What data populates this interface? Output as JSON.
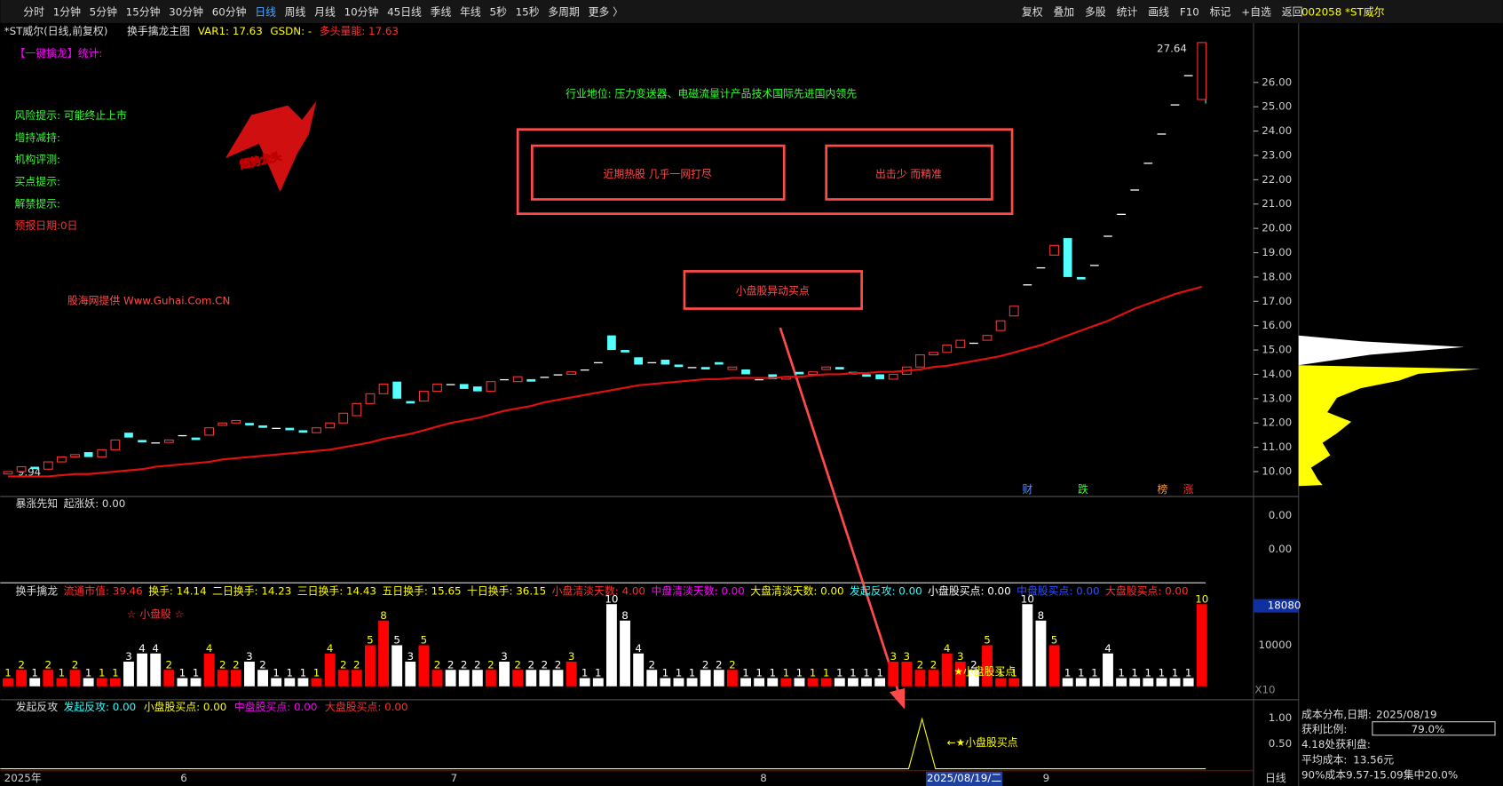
{
  "toolbar": {
    "periods": [
      "分时",
      "1分钟",
      "5分钟",
      "15分钟",
      "30分钟",
      "60分钟",
      "日线",
      "周线",
      "月线",
      "10分钟",
      "45日线",
      "季线",
      "年线",
      "5秒",
      "15秒",
      "多周期",
      "更多 〉"
    ],
    "active": 6,
    "tools": [
      "复权",
      "叠加",
      "多股",
      "统计",
      "画线",
      "F10",
      "标记",
      "+自选",
      "返回"
    ],
    "stock": "002058 *ST威尔"
  },
  "main": {
    "title": "*ST威尔(日线,前复权)",
    "indicator": "换手擒龙主图",
    "stats": [
      {
        "text": "VAR1: 17.63",
        "color": "#ffff00"
      },
      {
        "text": "GSDN: -",
        "color": "#ffff00"
      },
      {
        "text": "多头量能: 17.63",
        "color": "#ff3030"
      }
    ],
    "notes": [
      {
        "text": "【一键擒龙】统计:",
        "color": "#ff00ff"
      },
      {
        "text": "风险提示: 可能终止上市",
        "color": "#33ff33"
      },
      {
        "text": "增持减持:",
        "color": "#33ff33"
      },
      {
        "text": "机构评测:",
        "color": "#33ff33"
      },
      {
        "text": "买点提示:",
        "color": "#33ff33"
      },
      {
        "text": "解禁提示:",
        "color": "#33ff33"
      },
      {
        "text": "预报日期:0日",
        "color": "#ff3030"
      }
    ],
    "industry": "行业地位: 压力变送器、电磁流量计产品技术国际先进国内领先",
    "logo": "超势龙头",
    "promo": "股海网提供 Www.Guhai.Com.CN",
    "boxes": [
      "近期热股 几乎一网打尽",
      "出击少 而精准"
    ],
    "callout": "小盘股异动买点",
    "high_label": "27.64",
    "low_label": "9.94",
    "markers": [
      {
        "text": "财",
        "color": "#5b8cff"
      },
      {
        "text": "跌",
        "color": "#33ff33"
      },
      {
        "text": "榜",
        "color": "#ff9a30"
      },
      {
        "text": "涨",
        "color": "#ff3030"
      }
    ]
  },
  "chart_data": {
    "type": "candlestick",
    "open": [
      9.9,
      10.0,
      10.2,
      10.1,
      10.4,
      10.6,
      10.8,
      10.6,
      10.9,
      11.6,
      11.3,
      11.2,
      11.2,
      11.5,
      11.4,
      11.5,
      11.9,
      12.0,
      12.0,
      11.9,
      11.8,
      11.8,
      11.7,
      11.6,
      11.8,
      12.0,
      12.3,
      12.8,
      13.2,
      13.7,
      12.9,
      12.9,
      13.3,
      13.6,
      13.6,
      13.5,
      13.3,
      13.8,
      13.7,
      13.8,
      13.9,
      14.0,
      14.0,
      14.2,
      14.5,
      15.6,
      15.0,
      14.7,
      14.5,
      14.6,
      14.4,
      14.3,
      14.3,
      14.5,
      14.2,
      14.2,
      13.8,
      14.0,
      13.8,
      14.1,
      14.0,
      14.2,
      14.3,
      14.1,
      14.0,
      14.0,
      13.8,
      14.0,
      14.3,
      14.8,
      14.9,
      15.1,
      15.3,
      15.4,
      15.8,
      16.4,
      17.7,
      18.4,
      18.9,
      19.6,
      18.0,
      18.5,
      19.7,
      20.6,
      21.6,
      22.7,
      23.9,
      25.1,
      26.3,
      25.3
    ],
    "close": [
      10.0,
      10.2,
      10.1,
      10.4,
      10.6,
      10.7,
      10.6,
      10.9,
      11.3,
      11.4,
      11.2,
      11.2,
      11.3,
      11.5,
      11.3,
      11.8,
      12.0,
      12.1,
      11.9,
      11.8,
      11.8,
      11.7,
      11.6,
      11.8,
      12.0,
      12.4,
      12.8,
      13.2,
      13.6,
      13.0,
      12.8,
      13.3,
      13.6,
      13.6,
      13.4,
      13.3,
      13.7,
      13.8,
      13.9,
      13.7,
      13.9,
      14.0,
      14.1,
      14.2,
      14.5,
      15.0,
      14.9,
      14.4,
      14.5,
      14.4,
      14.3,
      14.3,
      14.2,
      14.4,
      14.3,
      14.0,
      13.8,
      13.8,
      13.9,
      14.0,
      14.1,
      14.3,
      14.2,
      14.0,
      13.9,
      13.8,
      14.0,
      14.3,
      14.8,
      14.9,
      15.2,
      15.4,
      15.3,
      15.6,
      16.2,
      16.8,
      17.7,
      18.4,
      19.3,
      18.0,
      17.9,
      18.5,
      19.7,
      20.6,
      21.6,
      22.7,
      23.9,
      25.1,
      26.3,
      27.64
    ],
    "ma": [
      9.8,
      9.8,
      9.8,
      9.8,
      9.85,
      9.9,
      9.9,
      9.95,
      10.0,
      10.05,
      10.1,
      10.2,
      10.25,
      10.3,
      10.35,
      10.4,
      10.5,
      10.55,
      10.6,
      10.65,
      10.7,
      10.75,
      10.8,
      10.85,
      10.9,
      11.0,
      11.1,
      11.2,
      11.35,
      11.45,
      11.55,
      11.7,
      11.85,
      12.0,
      12.1,
      12.2,
      12.35,
      12.5,
      12.6,
      12.7,
      12.85,
      12.95,
      13.05,
      13.15,
      13.25,
      13.35,
      13.45,
      13.55,
      13.6,
      13.65,
      13.7,
      13.75,
      13.8,
      13.8,
      13.85,
      13.85,
      13.85,
      13.85,
      13.9,
      13.9,
      13.95,
      14.0,
      14.0,
      14.05,
      14.05,
      14.1,
      14.1,
      14.15,
      14.2,
      14.3,
      14.35,
      14.45,
      14.55,
      14.65,
      14.75,
      14.9,
      15.05,
      15.2,
      15.4,
      15.6,
      15.8,
      16.0,
      16.2,
      16.45,
      16.7,
      16.9,
      17.1,
      17.3,
      17.45,
      17.6
    ],
    "ylim": [
      9.1,
      27.8
    ],
    "yticks": [
      {
        "value": 10,
        "label": "10.00"
      },
      {
        "value": 11,
        "label": "11.00"
      },
      {
        "value": 12,
        "label": "12.00"
      },
      {
        "value": 13,
        "label": "13.00"
      },
      {
        "value": 14,
        "label": "14.00"
      },
      {
        "value": 15,
        "label": "15.00"
      },
      {
        "value": 16,
        "label": "16.00"
      },
      {
        "value": 17,
        "label": "17.00"
      },
      {
        "value": 18,
        "label": "18.00"
      },
      {
        "value": 19,
        "label": "19.00"
      },
      {
        "value": 20,
        "label": "20.00"
      },
      {
        "value": 21,
        "label": "21.00"
      },
      {
        "value": 22,
        "label": "22.00"
      },
      {
        "value": 23,
        "label": "23.00"
      },
      {
        "value": 24,
        "label": "24.00"
      },
      {
        "value": 25,
        "label": "25.00"
      },
      {
        "value": 26,
        "label": "26.00"
      }
    ],
    "up_color": "#ff3232",
    "down_color": "#54ffff",
    "flat_color": "#ffffff",
    "ma_color": "#e01010",
    "volume": {
      "values": [
        1,
        2,
        1,
        2,
        1,
        2,
        1,
        1,
        1,
        3,
        4,
        4,
        2,
        1,
        1,
        4,
        2,
        2,
        3,
        2,
        1,
        1,
        1,
        1,
        4,
        2,
        2,
        5,
        8,
        5,
        3,
        5,
        2,
        2,
        2,
        2,
        2,
        3,
        2,
        2,
        2,
        2,
        3,
        1,
        1,
        10,
        8,
        4,
        2,
        1,
        1,
        1,
        2,
        2,
        2,
        1,
        1,
        1,
        1,
        1,
        1,
        1,
        1,
        1,
        1,
        1,
        3,
        3,
        2,
        2,
        4,
        3,
        2,
        5,
        1,
        1,
        10,
        8,
        5,
        1,
        1,
        1,
        4,
        1,
        1,
        1,
        1,
        1,
        1,
        10
      ],
      "ylim": [
        0,
        10.5
      ],
      "up_color": "#ff0000",
      "down_color": "#ffffff"
    }
  },
  "panel2": {
    "title": "暴涨先知",
    "stat": "起涨妖: 0.00",
    "ticks": [
      "0.00",
      "0.00"
    ]
  },
  "panel3": {
    "title": "换手擒龙",
    "items": [
      {
        "text": "流通市值: 39.46",
        "color": "#ff3030"
      },
      {
        "text": "换手: 14.14",
        "color": "#ffff00"
      },
      {
        "text": "二日换手: 14.23",
        "color": "#ffff00"
      },
      {
        "text": "三日换手: 14.43",
        "color": "#ffff00"
      },
      {
        "text": "五日换手: 15.65",
        "color": "#ffff00"
      },
      {
        "text": "十日换手: 36.15",
        "color": "#ffff00"
      },
      {
        "text": "小盘清淡天数: 4.00",
        "color": "#ff3030"
      },
      {
        "text": "中盘清淡天数: 0.00",
        "color": "#ff00ff"
      },
      {
        "text": "大盘清淡天数: 0.00",
        "color": "#ffff00"
      },
      {
        "text": "发起反攻: 0.00",
        "color": "#33ffff"
      },
      {
        "text": "小盘股买点: 0.00",
        "color": "#ffffff"
      },
      {
        "text": "中盘股买点: 0.00",
        "color": "#3050ff"
      },
      {
        "text": "大盘股买点: 0.00",
        "color": "#ff3030"
      }
    ],
    "tag": "☆ 小盘股 ☆",
    "axis": [
      "18080",
      "10000",
      "X10"
    ],
    "buy": "★小盘股买点"
  },
  "panel4": {
    "title": "发起反攻",
    "items": [
      {
        "text": "发起反攻: 0.00",
        "color": "#33ffff"
      },
      {
        "text": "小盘股买点: 0.00",
        "color": "#ffff00"
      },
      {
        "text": "中盘股买点: 0.00",
        "color": "#ff00ff"
      },
      {
        "text": "大盘股买点: 0.00",
        "color": "#ff3030"
      }
    ],
    "ticks": [
      "1.00",
      "0.50"
    ],
    "signal": "←★小盘股买点"
  },
  "xaxis": {
    "labels": [
      "2025年",
      "6",
      "7",
      "8",
      "9"
    ],
    "cursor": "2025/08/19/二",
    "period": "日线"
  },
  "cost": {
    "title": "成本分布,日期:",
    "date": "2025/08/19",
    "profit_label": "获利比例:",
    "profit": "79.0%",
    "line1": "4.18处获利盘:",
    "avg_label": "平均成本:",
    "avg": "13.56元",
    "range": "90%成本9.57-15.09集中20.0%"
  }
}
